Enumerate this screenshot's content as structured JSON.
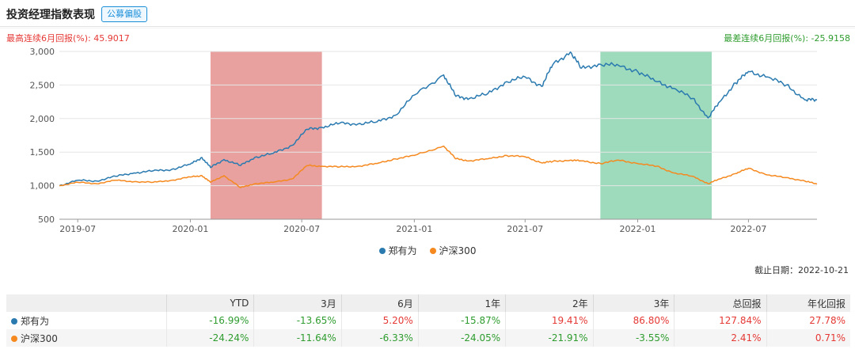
{
  "header": {
    "title": "投资经理指数表现",
    "tag": "公募偏股"
  },
  "stats": {
    "best": "最高连续6月回报(%): 45.9017",
    "worst": "最差连续6月回报(%): -25.9158"
  },
  "as_of": "截止日期：2022-10-21",
  "colors": {
    "manager": "#2a7ab0",
    "index": "#f5891f",
    "best_band": "#d9625f",
    "worst_band": "#3cb779",
    "negative": "#2e9c2e",
    "positive": "#e53935"
  },
  "chart_data": {
    "type": "line",
    "x_start": "2019-06-01",
    "x_end": "2022-10-21",
    "xticks": [
      "2019-07",
      "2020-01",
      "2020-07",
      "2021-01",
      "2021-07",
      "2022-01",
      "2022-07"
    ],
    "ylim": [
      500,
      3000
    ],
    "yticks": [
      "500",
      "1,000",
      "1,500",
      "2,000",
      "2,500",
      "3,000"
    ],
    "highlights": [
      {
        "name": "best 6-month",
        "start": "2020-02-03",
        "end": "2020-08-03"
      },
      {
        "name": "worst 6-month",
        "start": "2021-11-01",
        "end": "2022-05-02"
      }
    ],
    "series": [
      {
        "name": "郑有为",
        "points": [
          [
            "2019-06-01",
            1000
          ],
          [
            "2019-07-01",
            1080
          ],
          [
            "2019-08-01",
            1070
          ],
          [
            "2019-09-01",
            1140
          ],
          [
            "2019-10-01",
            1190
          ],
          [
            "2019-11-01",
            1220
          ],
          [
            "2019-12-01",
            1240
          ],
          [
            "2020-01-01",
            1320
          ],
          [
            "2020-01-20",
            1420
          ],
          [
            "2020-02-03",
            1270
          ],
          [
            "2020-02-25",
            1390
          ],
          [
            "2020-03-23",
            1300
          ],
          [
            "2020-04-15",
            1420
          ],
          [
            "2020-05-15",
            1480
          ],
          [
            "2020-06-15",
            1600
          ],
          [
            "2020-07-10",
            1840
          ],
          [
            "2020-08-03",
            1870
          ],
          [
            "2020-09-01",
            1930
          ],
          [
            "2020-10-01",
            1920
          ],
          [
            "2020-11-01",
            1950
          ],
          [
            "2020-12-01",
            2050
          ],
          [
            "2021-01-01",
            2350
          ],
          [
            "2021-02-18",
            2650
          ],
          [
            "2021-03-10",
            2330
          ],
          [
            "2021-04-01",
            2300
          ],
          [
            "2021-05-01",
            2370
          ],
          [
            "2021-06-01",
            2550
          ],
          [
            "2021-07-01",
            2620
          ],
          [
            "2021-07-28",
            2480
          ],
          [
            "2021-08-15",
            2800
          ],
          [
            "2021-09-13",
            2990
          ],
          [
            "2021-10-01",
            2750
          ],
          [
            "2021-11-01",
            2810
          ],
          [
            "2021-12-01",
            2790
          ],
          [
            "2022-01-01",
            2700
          ],
          [
            "2022-02-01",
            2550
          ],
          [
            "2022-03-01",
            2450
          ],
          [
            "2022-04-01",
            2300
          ],
          [
            "2022-04-26",
            2010
          ],
          [
            "2022-05-15",
            2250
          ],
          [
            "2022-06-10",
            2530
          ],
          [
            "2022-07-01",
            2700
          ],
          [
            "2022-08-01",
            2620
          ],
          [
            "2022-09-01",
            2500
          ],
          [
            "2022-10-01",
            2280
          ],
          [
            "2022-10-21",
            2278
          ]
        ]
      },
      {
        "name": "沪深300",
        "points": [
          [
            "2019-06-01",
            1000
          ],
          [
            "2019-07-01",
            1050
          ],
          [
            "2019-08-01",
            1030
          ],
          [
            "2019-09-01",
            1080
          ],
          [
            "2019-10-01",
            1060
          ],
          [
            "2019-11-01",
            1050
          ],
          [
            "2019-12-01",
            1080
          ],
          [
            "2020-01-01",
            1130
          ],
          [
            "2020-01-20",
            1150
          ],
          [
            "2020-02-03",
            1050
          ],
          [
            "2020-02-25",
            1150
          ],
          [
            "2020-03-23",
            970
          ],
          [
            "2020-04-15",
            1030
          ],
          [
            "2020-05-15",
            1050
          ],
          [
            "2020-06-15",
            1100
          ],
          [
            "2020-07-10",
            1300
          ],
          [
            "2020-08-03",
            1290
          ],
          [
            "2020-09-01",
            1280
          ],
          [
            "2020-10-01",
            1290
          ],
          [
            "2020-11-01",
            1330
          ],
          [
            "2020-12-01",
            1400
          ],
          [
            "2021-01-01",
            1450
          ],
          [
            "2021-02-18",
            1590
          ],
          [
            "2021-03-10",
            1400
          ],
          [
            "2021-04-01",
            1370
          ],
          [
            "2021-05-01",
            1400
          ],
          [
            "2021-06-01",
            1450
          ],
          [
            "2021-07-01",
            1430
          ],
          [
            "2021-07-28",
            1340
          ],
          [
            "2021-08-15",
            1360
          ],
          [
            "2021-09-13",
            1380
          ],
          [
            "2021-10-01",
            1370
          ],
          [
            "2021-11-01",
            1330
          ],
          [
            "2021-12-01",
            1380
          ],
          [
            "2022-01-01",
            1330
          ],
          [
            "2022-02-01",
            1290
          ],
          [
            "2022-03-01",
            1190
          ],
          [
            "2022-04-01",
            1140
          ],
          [
            "2022-04-26",
            1030
          ],
          [
            "2022-05-15",
            1100
          ],
          [
            "2022-06-10",
            1180
          ],
          [
            "2022-07-01",
            1260
          ],
          [
            "2022-08-01",
            1160
          ],
          [
            "2022-09-01",
            1120
          ],
          [
            "2022-10-01",
            1070
          ],
          [
            "2022-10-21",
            1024
          ]
        ]
      }
    ]
  },
  "legend": [
    {
      "label": "郑有为"
    },
    {
      "label": "沪深300"
    }
  ],
  "table": {
    "headers": [
      "",
      "YTD",
      "3月",
      "6月",
      "1年",
      "2年",
      "3年",
      "总回报",
      "年化回报"
    ],
    "rows": [
      {
        "name": "郑有为",
        "values": [
          "-16.99%",
          "-13.65%",
          "5.20%",
          "-15.87%",
          "19.41%",
          "86.80%",
          "127.84%",
          "27.78%"
        ]
      },
      {
        "name": "沪深300",
        "values": [
          "-24.24%",
          "-11.64%",
          "-6.33%",
          "-24.05%",
          "-21.91%",
          "-3.55%",
          "2.41%",
          "0.71%"
        ]
      }
    ]
  }
}
